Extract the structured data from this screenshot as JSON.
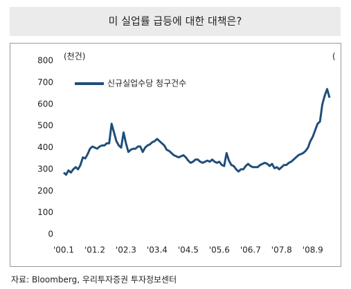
{
  "chart_data": {
    "type": "line",
    "title": "미 실업률 급등에 대한 대책은?",
    "y_label": "(천건)",
    "y2_label": "(",
    "source": "자료: Bloomberg,  우리투자증권  투자정보센터",
    "categories": [
      "'00.1",
      null,
      null,
      null,
      null,
      null,
      null,
      null,
      null,
      null,
      null,
      null,
      null,
      "'01.2",
      null,
      null,
      null,
      null,
      null,
      null,
      null,
      null,
      null,
      null,
      null,
      null,
      "'02.3",
      null,
      null,
      null,
      null,
      null,
      null,
      null,
      null,
      null,
      null,
      null,
      null,
      "'03.4",
      null,
      null,
      null,
      null,
      null,
      null,
      null,
      null,
      null,
      null,
      null,
      null,
      "'04.5",
      null,
      null,
      null,
      null,
      null,
      null,
      null,
      null,
      null,
      null,
      null,
      null,
      "'05.6",
      null,
      null,
      null,
      null,
      null,
      null,
      null,
      null,
      null,
      null,
      null,
      null,
      "'06.7",
      null,
      null,
      null,
      null,
      null,
      null,
      null,
      null,
      null,
      null,
      null,
      null,
      "'07.8",
      null,
      null,
      null,
      null,
      null,
      null,
      null,
      null,
      null,
      null,
      null,
      null,
      "'08.9",
      null,
      null,
      null,
      null,
      null,
      null,
      null
    ],
    "series": [
      {
        "name": "신규실업수당 청구건수",
        "color": "#1f4e79",
        "values": [
          285,
          275,
          295,
          285,
          300,
          310,
          300,
          320,
          355,
          350,
          370,
          395,
          405,
          400,
          395,
          405,
          410,
          410,
          420,
          420,
          510,
          470,
          430,
          410,
          400,
          470,
          420,
          380,
          390,
          395,
          395,
          405,
          405,
          380,
          400,
          410,
          415,
          425,
          430,
          440,
          430,
          420,
          410,
          390,
          385,
          375,
          365,
          360,
          355,
          360,
          365,
          355,
          340,
          330,
          335,
          345,
          345,
          335,
          330,
          335,
          340,
          335,
          345,
          335,
          330,
          335,
          320,
          315,
          375,
          340,
          320,
          315,
          300,
          290,
          300,
          300,
          315,
          325,
          315,
          310,
          310,
          310,
          320,
          325,
          330,
          325,
          315,
          325,
          305,
          310,
          300,
          310,
          320,
          320,
          330,
          335,
          345,
          355,
          365,
          370,
          375,
          385,
          400,
          430,
          450,
          480,
          510,
          520,
          600,
          640,
          670,
          630
        ]
      }
    ],
    "ylim": [
      0,
      800
    ],
    "yticks": [
      0,
      100,
      200,
      300,
      400,
      500,
      600,
      700,
      800
    ],
    "grid": false,
    "legend": "upper-left"
  }
}
